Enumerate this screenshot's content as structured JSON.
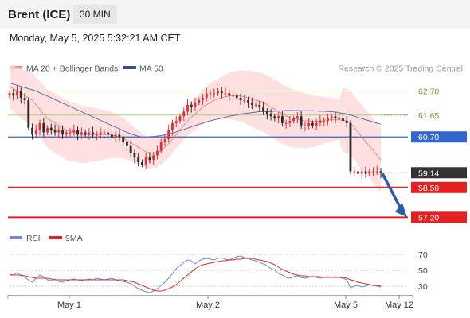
{
  "header": {
    "title": "Brent (ICE)",
    "timeframe": "30 MIN"
  },
  "timestamp": "Monday, May 5, 2025 5:32:21 AM CET",
  "legend": {
    "ma20_label": "MA 20 + Bollinger Bands",
    "ma50_label": "MA 50",
    "credit": "Research © 2025 Trading Central",
    "rsi_label": "RSI",
    "ma9_label": "9MA"
  },
  "colors": {
    "candle_up": "#e03030",
    "candle_down": "#2b2b2b",
    "bollinger": "#ffd6d6",
    "ma20": "#f08a8a",
    "ma50": "#5b6bb5",
    "pivot": "#3366cc",
    "support": "#e52020",
    "resistance": "#a8cf7a",
    "current": "#333333",
    "arrow": "#2a5aa8",
    "rsi": "#6f86e0",
    "rsi_ma": "#e03030"
  },
  "chart_data": [
    {
      "type": "candlestick",
      "ylim": [
        56.9,
        63.2
      ],
      "x_ticks": [
        "May 1",
        "May 2",
        "May 5",
        "May 12"
      ],
      "levels": [
        {
          "value": 62.7,
          "label": "62.70",
          "kind": "resistance"
        },
        {
          "value": 61.65,
          "label": "61.65",
          "kind": "resistance"
        },
        {
          "value": 60.7,
          "label": "60.70",
          "kind": "pivot"
        },
        {
          "value": 59.14,
          "label": "59.14",
          "kind": "current"
        },
        {
          "value": 58.5,
          "label": "58.50",
          "kind": "support"
        },
        {
          "value": 57.2,
          "label": "57.20",
          "kind": "support"
        }
      ],
      "closes": [
        62.6,
        62.5,
        62.7,
        62.4,
        62.3,
        61.1,
        60.8,
        61.0,
        61.3,
        60.9,
        61.1,
        61.0,
        60.9,
        61.0,
        60.8,
        60.9,
        60.9,
        61.0,
        60.8,
        60.9,
        60.8,
        60.9,
        60.8,
        60.8,
        60.9,
        60.9,
        60.8,
        60.7,
        60.8,
        60.7,
        60.5,
        60.3,
        60.0,
        59.8,
        59.6,
        59.5,
        59.8,
        59.7,
        59.9,
        60.1,
        60.5,
        60.6,
        61.0,
        61.3,
        61.4,
        61.6,
        61.8,
        62.1,
        62.0,
        62.2,
        62.3,
        62.4,
        62.6,
        62.6,
        62.6,
        62.7,
        62.6,
        62.6,
        62.5,
        62.5,
        62.4,
        62.3,
        62.3,
        62.2,
        62.1,
        62.1,
        62.0,
        61.8,
        61.7,
        61.6,
        61.5,
        61.6,
        61.3,
        61.3,
        61.4,
        61.5,
        61.6,
        61.2,
        61.2,
        61.3,
        61.2,
        61.3,
        61.4,
        61.4,
        61.5,
        61.6,
        61.5,
        61.5,
        61.4,
        61.3,
        59.2,
        59.2,
        59.1,
        59.2,
        59.1,
        59.2,
        59.2,
        59.2,
        59.14
      ],
      "ma20": [
        62.9,
        62.8,
        62.7,
        62.6,
        62.5,
        62.4,
        62.3,
        62.1,
        61.9,
        61.7,
        61.5,
        61.4,
        61.3,
        61.2,
        61.1,
        61.0,
        60.95,
        60.9,
        60.85,
        60.8,
        60.8,
        60.8,
        60.8,
        60.8,
        60.8,
        60.8,
        60.8,
        60.78,
        60.75,
        60.7,
        60.65,
        60.55,
        60.45,
        60.35,
        60.25,
        60.15,
        60.05,
        60.0,
        59.98,
        60.0,
        60.1,
        60.25,
        60.4,
        60.6,
        60.8,
        61.0,
        61.2,
        61.4,
        61.55,
        61.7,
        61.85,
        62.0,
        62.1,
        62.2,
        62.3,
        62.35,
        62.4,
        62.45,
        62.48,
        62.5,
        62.5,
        62.48,
        62.45,
        62.4,
        62.35,
        62.3,
        62.25,
        62.2,
        62.1,
        62.0,
        61.9,
        61.8,
        61.7,
        61.6,
        61.55,
        61.5,
        61.48,
        61.45,
        61.4,
        61.4,
        61.38,
        61.38,
        61.4,
        61.42,
        61.45,
        61.45,
        61.45,
        61.45,
        61.43,
        61.4,
        61.3,
        61.1,
        60.9,
        60.7,
        60.5,
        60.3,
        60.1,
        59.9,
        59.7
      ],
      "ma50": [
        63.05,
        63.0,
        62.95,
        62.9,
        62.85,
        62.8,
        62.75,
        62.7,
        62.62,
        62.55,
        62.48,
        62.4,
        62.32,
        62.25,
        62.17,
        62.1,
        62.02,
        61.95,
        61.87,
        61.8,
        61.72,
        61.65,
        61.57,
        61.5,
        61.42,
        61.35,
        61.27,
        61.2,
        61.12,
        61.05,
        60.97,
        60.9,
        60.84,
        60.78,
        60.73,
        60.7,
        60.7,
        60.71,
        60.72,
        60.74,
        60.76,
        60.79,
        60.83,
        60.87,
        60.92,
        60.97,
        61.02,
        61.08,
        61.14,
        61.2,
        61.25,
        61.3,
        61.35,
        61.4,
        61.44,
        61.48,
        61.52,
        61.56,
        61.6,
        61.63,
        61.66,
        61.7,
        61.72,
        61.74,
        61.76,
        61.78,
        61.8,
        61.8,
        61.8,
        61.81,
        61.82,
        61.83,
        61.84,
        61.85,
        61.85,
        61.85,
        61.85,
        61.84,
        61.84,
        61.84,
        61.84,
        61.83,
        61.82,
        61.82,
        61.81,
        61.8,
        61.78,
        61.75,
        61.73,
        61.7,
        61.65,
        61.6,
        61.55,
        61.5,
        61.45,
        61.4,
        61.35,
        61.3,
        61.25
      ]
    },
    {
      "type": "line",
      "ylim": [
        18,
        78
      ],
      "y_ticks": [
        70,
        50,
        30
      ],
      "series": [
        {
          "name": "RSI",
          "values": [
            45,
            44,
            47,
            43,
            41,
            38,
            35,
            40,
            44,
            42,
            38,
            37,
            39,
            36,
            35,
            37,
            38,
            39,
            38,
            37,
            38,
            39,
            38,
            40,
            39,
            38,
            39,
            40,
            38,
            37,
            36,
            35,
            33,
            30,
            27,
            25,
            23,
            22,
            24,
            27,
            31,
            35,
            40,
            46,
            52,
            56,
            60,
            63,
            62,
            58,
            62,
            64,
            65,
            64,
            63,
            65,
            66,
            64,
            63,
            65,
            67,
            68,
            66,
            65,
            63,
            62,
            60,
            58,
            56,
            52,
            50,
            46,
            44,
            41,
            40,
            42,
            43,
            41,
            40,
            41,
            42,
            41,
            40,
            41,
            42,
            41,
            42,
            41,
            40,
            38,
            28,
            30,
            31,
            29,
            30,
            32,
            31,
            30,
            29
          ]
        },
        {
          "name": "9MA",
          "values": [
            44,
            44,
            44,
            44,
            43,
            42,
            41,
            40,
            40,
            40,
            40,
            39,
            38,
            38,
            38,
            38,
            38,
            38,
            38,
            38,
            38,
            38,
            38,
            38,
            38,
            38,
            38,
            38,
            38,
            38,
            38,
            37,
            36,
            35,
            33,
            31,
            29,
            27,
            25,
            24,
            24,
            25,
            27,
            29,
            32,
            36,
            40,
            44,
            48,
            52,
            55,
            57,
            58,
            59,
            60,
            61,
            62,
            62,
            63,
            63,
            64,
            64,
            65,
            65,
            65,
            64,
            63,
            62,
            61,
            59,
            57,
            54,
            51,
            49,
            47,
            45,
            44,
            43,
            43,
            42,
            42,
            42,
            42,
            41,
            41,
            41,
            41,
            41,
            41,
            40,
            38,
            37,
            35,
            34,
            33,
            32,
            31,
            31,
            30
          ]
        }
      ]
    }
  ]
}
